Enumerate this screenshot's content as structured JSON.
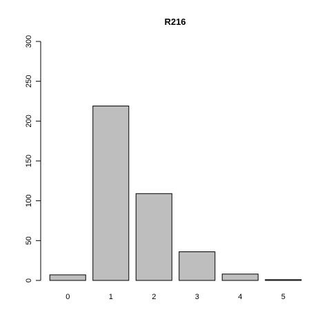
{
  "chart_data": {
    "type": "bar",
    "title": "R216",
    "xlabel": "",
    "ylabel": "",
    "categories": [
      "0",
      "1",
      "2",
      "3",
      "4",
      "5"
    ],
    "values": [
      7,
      219,
      109,
      36,
      8,
      1
    ],
    "ylim": [
      0,
      300
    ],
    "yticks": [
      "0",
      "50",
      "100",
      "150",
      "200",
      "250",
      "300"
    ],
    "grid": false,
    "legend": "none",
    "bar_fill": "#bebebe",
    "bar_stroke": "#000000"
  }
}
